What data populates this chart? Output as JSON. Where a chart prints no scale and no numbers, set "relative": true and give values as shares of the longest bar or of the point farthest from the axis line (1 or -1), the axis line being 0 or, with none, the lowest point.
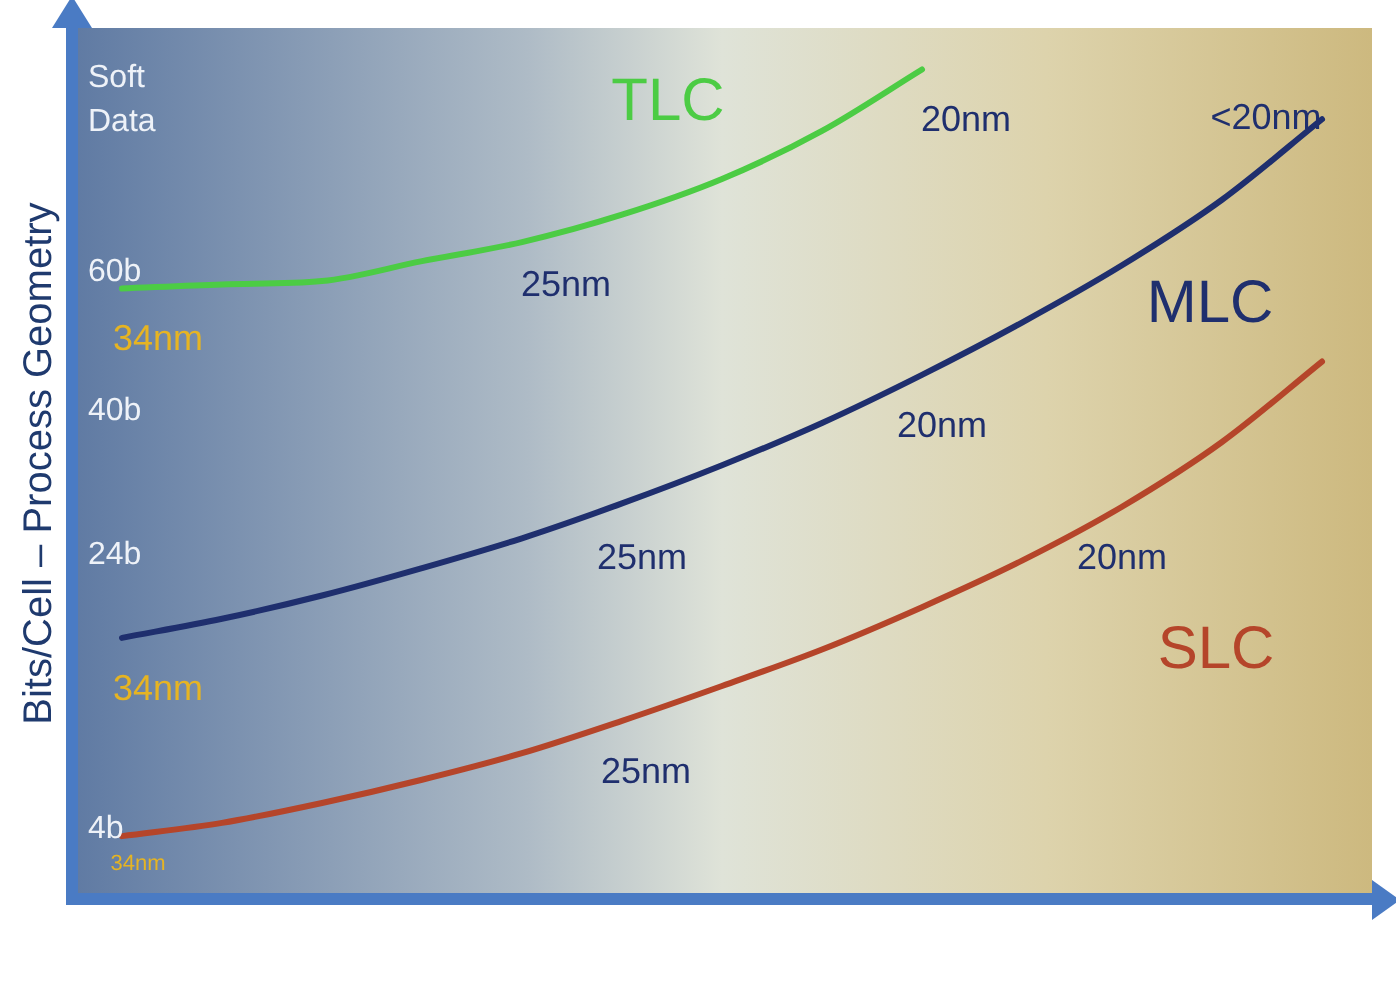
{
  "chart_data": {
    "type": "line",
    "relative": true,
    "ylabel": "Bits/Cell – Process Geometry",
    "categories": [
      null,
      null,
      null,
      null,
      null,
      null,
      null,
      null,
      null,
      null,
      null,
      null,
      null
    ],
    "series": [
      {
        "name": "TLC",
        "color": "#4ccc44",
        "values": [
          0.736,
          0.741,
          0.745,
          0.769,
          0.792,
          0.825,
          0.868,
          0.926,
          1,
          null,
          null,
          null,
          null
        ]
      },
      {
        "name": "MLC",
        "color": "#1f2f6e",
        "values": [
          0.315,
          0.338,
          0.366,
          0.399,
          0.435,
          0.477,
          0.523,
          0.574,
          0.632,
          0.695,
          0.764,
          0.843,
          0.94
        ]
      },
      {
        "name": "SLC",
        "color": "#b5452a",
        "values": [
          0.076,
          0.092,
          0.116,
          0.144,
          0.176,
          0.215,
          0.257,
          0.301,
          0.352,
          0.408,
          0.473,
          0.551,
          0.648
        ]
      }
    ],
    "annotations": [
      "Soft Data",
      "60b",
      "40b",
      "24b",
      "4b",
      "34nm",
      "25nm",
      "20nm",
      "34nm",
      "25nm",
      "20nm",
      "<20nm",
      "34nm",
      "25nm",
      "20nm"
    ],
    "legend": false,
    "marker": "none",
    "line_style": "solid",
    "grid": false
  }
}
